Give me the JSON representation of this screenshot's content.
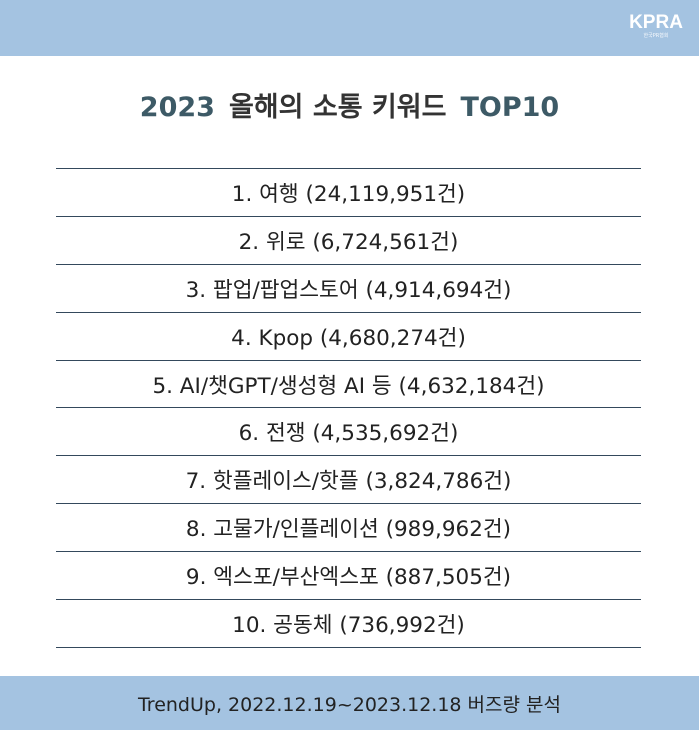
{
  "brand": {
    "logo_text": "KPRA",
    "logo_subtext": "한국PR협회"
  },
  "title": {
    "year": "2023",
    "main": "올해의 소통 키워드",
    "suffix": "TOP10"
  },
  "keywords": [
    "1. 여행 (24,119,951건)",
    "2. 위로 (6,724,561건)",
    "3. 팝업/팝업스토어 (4,914,694건)",
    "4. Kpop (4,680,274건)",
    "5. AI/챗GPT/생성형 AI 등 (4,632,184건)",
    "6. 전쟁 (4,535,692건)",
    "7. 핫플레이스/핫플 (3,824,786건)",
    "8. 고물가/인플레이션 (989,962건)",
    "9. 엑스포/부산엑스포 (887,505건)",
    "10. 공동체 (736,992건)"
  ],
  "footer": {
    "source": "TrendUp, 2022.12.19~2023.12.18 버즈량 분석"
  },
  "colors": {
    "band": "#a4c3e1",
    "rule": "#34495c",
    "title_accent": "#3d5a66"
  }
}
